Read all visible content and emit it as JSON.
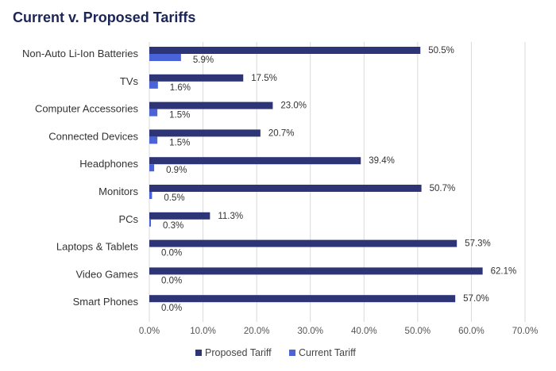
{
  "chart_data": {
    "type": "bar",
    "orientation": "horizontal",
    "title": "Current v. Proposed Tariffs",
    "categories": [
      "Non-Auto Li-Ion Batteries",
      "TVs",
      "Computer Accessories",
      "Connected Devices",
      "Headphones",
      "Monitors",
      "PCs",
      "Laptops & Tablets",
      "Video Games",
      "Smart Phones"
    ],
    "series": [
      {
        "name": "Proposed Tariff",
        "color": "#2e3577",
        "values": [
          50.5,
          17.5,
          23.0,
          20.7,
          39.4,
          50.7,
          11.3,
          57.3,
          62.1,
          57.0
        ],
        "labels": [
          "50.5%",
          "17.5%",
          "23.0%",
          "20.7%",
          "39.4%",
          "50.7%",
          "11.3%",
          "57.3%",
          "62.1%",
          "57.0%"
        ]
      },
      {
        "name": "Current Tariff",
        "color": "#4b63d9",
        "values": [
          5.9,
          1.6,
          1.5,
          1.5,
          0.9,
          0.5,
          0.3,
          0.0,
          0.0,
          0.0
        ],
        "labels": [
          "5.9%",
          "1.6%",
          "1.5%",
          "1.5%",
          "0.9%",
          "0.5%",
          "0.3%",
          "0.0%",
          "0.0%",
          "0.0%"
        ]
      }
    ],
    "xlim": [
      0,
      70
    ],
    "xticks": [
      0,
      10,
      20,
      30,
      40,
      50,
      60,
      70
    ],
    "xtick_labels": [
      "0.0%",
      "10.0%",
      "20.0%",
      "30.0%",
      "40.0%",
      "50.0%",
      "60.0%",
      "70.0%"
    ],
    "grid": true,
    "legend_position": "bottom"
  }
}
